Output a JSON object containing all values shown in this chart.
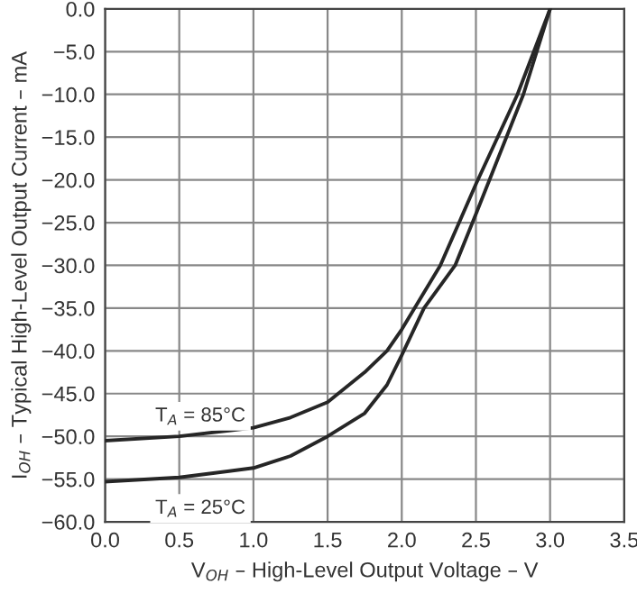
{
  "chart_data": {
    "type": "line",
    "xlabel": "V$_{OH}$ – High-Level Output Voltage – V",
    "ylabel": "I$_{OH}$ – Typical High-Level Output Current – mA",
    "series": [
      {
        "name": "T$_{A}$ = 85°C",
        "color": "#262626",
        "x": [
          0,
          0.5,
          1.0,
          1.25,
          1.5,
          1.75,
          1.9,
          2.0,
          2.26,
          2.5,
          2.78,
          3.0
        ],
        "values": [
          -50.5,
          -50.0,
          -49.0,
          -47.8,
          -46,
          -42.5,
          -40,
          -37.5,
          -30,
          -20.5,
          -10,
          0
        ]
      },
      {
        "name": "T$_{A}$ = 25°C",
        "color": "#262626",
        "x": [
          0,
          0.5,
          1.0,
          1.25,
          1.5,
          1.75,
          1.9,
          2.0,
          2.15,
          2.36,
          2.5,
          2.82,
          3.0
        ],
        "values": [
          -55.3,
          -54.8,
          -53.7,
          -52.3,
          -50,
          -47.3,
          -44,
          -40.5,
          -35,
          -30,
          -24,
          -10,
          0
        ]
      }
    ],
    "xlim": [
      0,
      3.5
    ],
    "xticks": [
      {
        "value": 0,
        "label": "0.0"
      },
      0.5,
      {
        "value": 1,
        "label": "1.0"
      },
      1.5,
      {
        "value": 2,
        "label": "2.0"
      },
      2.5,
      {
        "value": 3,
        "label": "3.0"
      },
      3.5
    ],
    "ylim": [
      -60,
      0
    ],
    "yticks": [
      {
        "value": -60,
        "label": "−60.0"
      },
      {
        "value": -55,
        "label": "−55.0"
      },
      {
        "value": -50,
        "label": "−50.0"
      },
      {
        "value": -45,
        "label": "−45.0"
      },
      {
        "value": -40,
        "label": "−40.0"
      },
      {
        "value": -35,
        "label": "−35.0"
      },
      {
        "value": -30,
        "label": "−30.0"
      },
      {
        "value": -25,
        "label": "−25.0"
      },
      {
        "value": -20,
        "label": "−20.0"
      },
      {
        "value": -15,
        "label": "−15.0"
      },
      {
        "value": -10,
        "label": "−10.0"
      },
      {
        "value": -5,
        "label": "−5.0"
      },
      {
        "value": 0,
        "label": "0.0"
      }
    ],
    "grid": true,
    "line_style": "solid",
    "marker": "none"
  }
}
